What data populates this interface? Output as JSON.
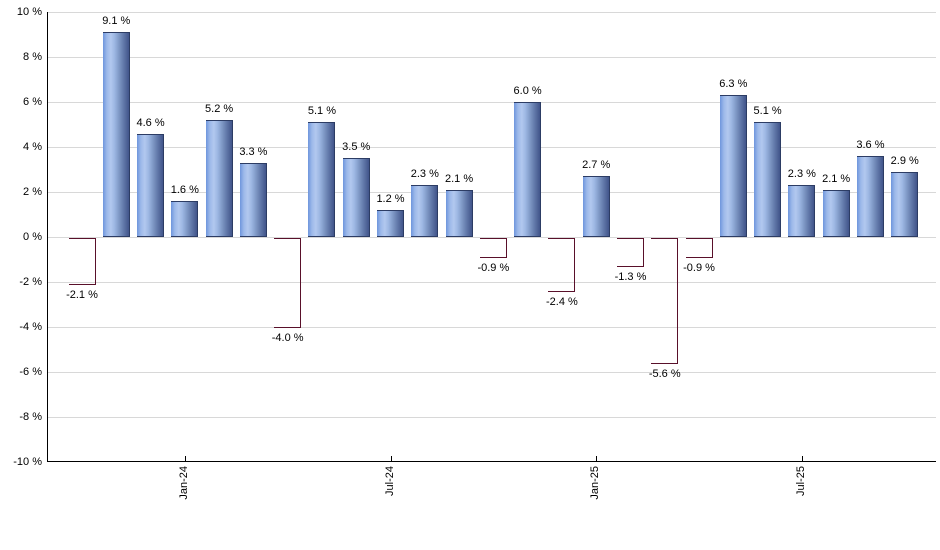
{
  "chart_data": {
    "type": "bar",
    "title": "",
    "xlabel": "",
    "ylabel": "",
    "ylim": [
      -10,
      10
    ],
    "grid": true,
    "values": [
      -2.1,
      9.1,
      4.6,
      1.6,
      5.2,
      3.3,
      -4.0,
      5.1,
      3.5,
      1.2,
      2.3,
      2.1,
      -0.9,
      6.0,
      -2.4,
      2.7,
      -1.3,
      -5.6,
      -0.9,
      6.3,
      5.1,
      2.3,
      2.1,
      3.6,
      2.9
    ],
    "bar_labels": [
      "-2.1 %",
      "9.1 %",
      "4.6 %",
      "1.6 %",
      "5.2 %",
      "3.3 %",
      "-4.0 %",
      "5.1 %",
      "3.5 %",
      "1.2 %",
      "2.3 %",
      "2.1 %",
      "-0.9 %",
      "6.0 %",
      "-2.4 %",
      "2.7 %",
      "-1.3 %",
      "-5.6 %",
      "-0.9 %",
      "6.3 %",
      "5.1 %",
      "2.3 %",
      "2.1 %",
      "3.6 %",
      "2.9 %"
    ],
    "y_tick_labels": [
      "10 %",
      "8 %",
      "6 %",
      "4 %",
      "2 %",
      "0 %",
      "-2 %",
      "-4 %",
      "-6 %",
      "-8 %",
      "-10 %"
    ],
    "x_ticks": [
      {
        "index": 3,
        "label": "Jan-24"
      },
      {
        "index": 9,
        "label": "Jul-24"
      },
      {
        "index": 15,
        "label": "Jan-25"
      },
      {
        "index": 21,
        "label": "Jul-25"
      }
    ],
    "colors": {
      "positive_bar": "#7ba1e0",
      "positive_bar_highlight": "#b2c8ef",
      "positive_bar_shadow": "#41558a",
      "negative_bar": "#dd3160",
      "negative_bar_highlight": "#e4738f",
      "negative_bar_shadow": "#771c3b",
      "gridline": "#d8d8d8",
      "axis": "#000000",
      "label_text": "#000000",
      "background": "#ffffff"
    }
  }
}
